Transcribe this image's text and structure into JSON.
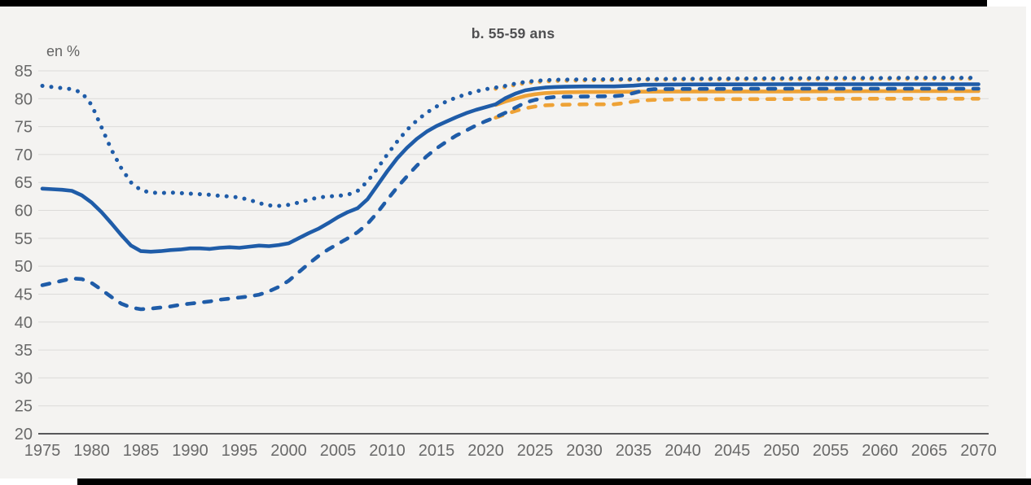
{
  "frame": {
    "background": "#f4f3f1",
    "top_bar_color": "#000000",
    "bottom_bar_color": "#000000"
  },
  "header": {
    "title": "b. 55-59 ans"
  },
  "colors": {
    "blue": "#1f5ca8",
    "orange": "#eea236",
    "gridline": "#dcdbd9",
    "axis": "#58585a",
    "tick_label": "#696969"
  },
  "chart_data": {
    "type": "line",
    "title": "b. 55-59 ans",
    "unit_label": "en %",
    "xlabel": "",
    "ylabel": "en %",
    "xlim": [
      1975,
      2070
    ],
    "ylim": [
      20,
      85
    ],
    "ytick_step": 5,
    "xticks": [
      1975,
      1980,
      1985,
      1990,
      1995,
      2000,
      2005,
      2010,
      2015,
      2020,
      2025,
      2030,
      2035,
      2040,
      2045,
      2050,
      2055,
      2060,
      2065,
      2070
    ],
    "grid": "horizontal",
    "legend_position": "none",
    "series": [
      {
        "name": "dotted-orange-projection",
        "color": "#eea236",
        "style": "dotted",
        "points": [
          [
            2021,
            81.8
          ],
          [
            2022,
            82.1
          ],
          [
            2023,
            82.5
          ],
          [
            2024,
            82.8
          ],
          [
            2025,
            83.0
          ],
          [
            2026,
            83.1
          ],
          [
            2027,
            83.2
          ],
          [
            2030,
            83.3
          ],
          [
            2035,
            83.4
          ],
          [
            2040,
            83.45
          ],
          [
            2050,
            83.5
          ],
          [
            2060,
            83.55
          ],
          [
            2070,
            83.6
          ]
        ]
      },
      {
        "name": "solid-orange-projection",
        "color": "#eea236",
        "style": "solid",
        "points": [
          [
            2021,
            78.9
          ],
          [
            2022,
            79.5
          ],
          [
            2023,
            80.0
          ],
          [
            2024,
            80.5
          ],
          [
            2025,
            80.8
          ],
          [
            2026,
            81.0
          ],
          [
            2027,
            81.1
          ],
          [
            2028,
            81.15
          ],
          [
            2030,
            81.2
          ],
          [
            2035,
            81.25
          ],
          [
            2040,
            81.3
          ],
          [
            2050,
            81.3
          ],
          [
            2060,
            81.35
          ],
          [
            2070,
            81.35
          ]
        ]
      },
      {
        "name": "dashed-orange-projection",
        "color": "#eea236",
        "style": "dashed",
        "points": [
          [
            2021,
            76.6
          ],
          [
            2022,
            77.2
          ],
          [
            2023,
            77.8
          ],
          [
            2024,
            78.3
          ],
          [
            2025,
            78.6
          ],
          [
            2026,
            78.8
          ],
          [
            2027,
            78.9
          ],
          [
            2030,
            79.0
          ],
          [
            2033,
            79.0
          ],
          [
            2034,
            79.2
          ],
          [
            2035,
            79.5
          ],
          [
            2036,
            79.7
          ],
          [
            2037,
            79.8
          ],
          [
            2040,
            79.9
          ],
          [
            2050,
            79.95
          ],
          [
            2060,
            80.0
          ],
          [
            2070,
            80.0
          ]
        ]
      },
      {
        "name": "dotted-blue",
        "color": "#1f5ca8",
        "style": "dotted",
        "points": [
          [
            1975,
            82.3
          ],
          [
            1976,
            82.1
          ],
          [
            1977,
            81.9
          ],
          [
            1978,
            81.7
          ],
          [
            1979,
            81.1
          ],
          [
            1980,
            78.9
          ],
          [
            1981,
            74.9
          ],
          [
            1982,
            70.9
          ],
          [
            1983,
            67.6
          ],
          [
            1984,
            65.0
          ],
          [
            1985,
            63.6
          ],
          [
            1986,
            63.2
          ],
          [
            1987,
            63.1
          ],
          [
            1988,
            63.2
          ],
          [
            1989,
            63.1
          ],
          [
            1990,
            63.0
          ],
          [
            1991,
            62.9
          ],
          [
            1992,
            62.8
          ],
          [
            1993,
            62.6
          ],
          [
            1994,
            62.5
          ],
          [
            1995,
            62.3
          ],
          [
            1996,
            61.9
          ],
          [
            1997,
            61.3
          ],
          [
            1998,
            60.9
          ],
          [
            1999,
            60.8
          ],
          [
            2000,
            61.0
          ],
          [
            2001,
            61.4
          ],
          [
            2002,
            61.9
          ],
          [
            2003,
            62.3
          ],
          [
            2004,
            62.5
          ],
          [
            2005,
            62.6
          ],
          [
            2006,
            62.8
          ],
          [
            2007,
            63.5
          ],
          [
            2008,
            65.2
          ],
          [
            2009,
            67.5
          ],
          [
            2010,
            70.0
          ],
          [
            2011,
            72.3
          ],
          [
            2012,
            74.4
          ],
          [
            2013,
            76.1
          ],
          [
            2014,
            77.5
          ],
          [
            2015,
            78.6
          ],
          [
            2016,
            79.5
          ],
          [
            2017,
            80.2
          ],
          [
            2018,
            80.8
          ],
          [
            2019,
            81.3
          ],
          [
            2020,
            81.7
          ],
          [
            2021,
            82.0
          ],
          [
            2022,
            82.3
          ],
          [
            2023,
            82.7
          ],
          [
            2024,
            83.0
          ],
          [
            2025,
            83.2
          ],
          [
            2026,
            83.3
          ],
          [
            2027,
            83.4
          ],
          [
            2030,
            83.45
          ],
          [
            2035,
            83.5
          ],
          [
            2040,
            83.55
          ],
          [
            2045,
            83.6
          ],
          [
            2050,
            83.65
          ],
          [
            2055,
            83.7
          ],
          [
            2060,
            83.7
          ],
          [
            2065,
            83.75
          ],
          [
            2070,
            83.75
          ]
        ]
      },
      {
        "name": "solid-blue",
        "color": "#1f5ca8",
        "style": "solid",
        "points": [
          [
            1975,
            63.9
          ],
          [
            1976,
            63.8
          ],
          [
            1977,
            63.7
          ],
          [
            1978,
            63.5
          ],
          [
            1979,
            62.7
          ],
          [
            1980,
            61.4
          ],
          [
            1981,
            59.7
          ],
          [
            1982,
            57.7
          ],
          [
            1983,
            55.6
          ],
          [
            1984,
            53.7
          ],
          [
            1985,
            52.7
          ],
          [
            1986,
            52.6
          ],
          [
            1987,
            52.7
          ],
          [
            1988,
            52.9
          ],
          [
            1989,
            53.0
          ],
          [
            1990,
            53.2
          ],
          [
            1991,
            53.2
          ],
          [
            1992,
            53.1
          ],
          [
            1993,
            53.3
          ],
          [
            1994,
            53.4
          ],
          [
            1995,
            53.3
          ],
          [
            1996,
            53.5
          ],
          [
            1997,
            53.7
          ],
          [
            1998,
            53.6
          ],
          [
            1999,
            53.8
          ],
          [
            2000,
            54.1
          ],
          [
            2001,
            55.0
          ],
          [
            2002,
            55.9
          ],
          [
            2003,
            56.7
          ],
          [
            2004,
            57.7
          ],
          [
            2005,
            58.8
          ],
          [
            2006,
            59.7
          ],
          [
            2007,
            60.4
          ],
          [
            2008,
            62.0
          ],
          [
            2009,
            64.5
          ],
          [
            2010,
            67.0
          ],
          [
            2011,
            69.3
          ],
          [
            2012,
            71.2
          ],
          [
            2013,
            72.8
          ],
          [
            2014,
            74.1
          ],
          [
            2015,
            75.1
          ],
          [
            2016,
            75.9
          ],
          [
            2017,
            76.7
          ],
          [
            2018,
            77.4
          ],
          [
            2019,
            78.0
          ],
          [
            2020,
            78.5
          ],
          [
            2021,
            79.0
          ],
          [
            2022,
            80.1
          ],
          [
            2023,
            80.9
          ],
          [
            2024,
            81.5
          ],
          [
            2025,
            81.8
          ],
          [
            2026,
            82.0
          ],
          [
            2027,
            82.1
          ],
          [
            2028,
            82.15
          ],
          [
            2030,
            82.2
          ],
          [
            2033,
            82.2
          ],
          [
            2035,
            82.35
          ],
          [
            2036,
            82.5
          ],
          [
            2040,
            82.55
          ],
          [
            2050,
            82.6
          ],
          [
            2060,
            82.6
          ],
          [
            2070,
            82.6
          ]
        ]
      },
      {
        "name": "dashed-blue",
        "color": "#1f5ca8",
        "style": "dashed",
        "points": [
          [
            1975,
            46.6
          ],
          [
            1976,
            47.0
          ],
          [
            1977,
            47.4
          ],
          [
            1978,
            47.8
          ],
          [
            1979,
            47.7
          ],
          [
            1980,
            47.0
          ],
          [
            1981,
            45.8
          ],
          [
            1982,
            44.5
          ],
          [
            1983,
            43.3
          ],
          [
            1984,
            42.6
          ],
          [
            1985,
            42.3
          ],
          [
            1986,
            42.4
          ],
          [
            1987,
            42.6
          ],
          [
            1988,
            42.8
          ],
          [
            1989,
            43.1
          ],
          [
            1990,
            43.3
          ],
          [
            1991,
            43.5
          ],
          [
            1992,
            43.7
          ],
          [
            1993,
            44.0
          ],
          [
            1994,
            44.2
          ],
          [
            1995,
            44.4
          ],
          [
            1996,
            44.6
          ],
          [
            1997,
            44.9
          ],
          [
            1998,
            45.5
          ],
          [
            1999,
            46.3
          ],
          [
            2000,
            47.4
          ],
          [
            2001,
            48.9
          ],
          [
            2002,
            50.4
          ],
          [
            2003,
            51.8
          ],
          [
            2004,
            53.0
          ],
          [
            2005,
            54.0
          ],
          [
            2006,
            55.0
          ],
          [
            2007,
            56.1
          ],
          [
            2008,
            57.6
          ],
          [
            2009,
            59.6
          ],
          [
            2010,
            61.9
          ],
          [
            2011,
            64.1
          ],
          [
            2012,
            66.1
          ],
          [
            2013,
            68.0
          ],
          [
            2014,
            69.7
          ],
          [
            2015,
            71.1
          ],
          [
            2016,
            72.3
          ],
          [
            2017,
            73.4
          ],
          [
            2018,
            74.3
          ],
          [
            2019,
            75.2
          ],
          [
            2020,
            76.0
          ],
          [
            2021,
            76.7
          ],
          [
            2022,
            77.5
          ],
          [
            2023,
            78.4
          ],
          [
            2024,
            79.3
          ],
          [
            2025,
            79.8
          ],
          [
            2026,
            80.1
          ],
          [
            2027,
            80.3
          ],
          [
            2028,
            80.35
          ],
          [
            2030,
            80.4
          ],
          [
            2033,
            80.45
          ],
          [
            2034,
            80.6
          ],
          [
            2035,
            81.0
          ],
          [
            2036,
            81.5
          ],
          [
            2037,
            81.7
          ],
          [
            2040,
            81.75
          ],
          [
            2050,
            81.8
          ],
          [
            2060,
            81.8
          ],
          [
            2070,
            81.8
          ]
        ]
      }
    ]
  }
}
